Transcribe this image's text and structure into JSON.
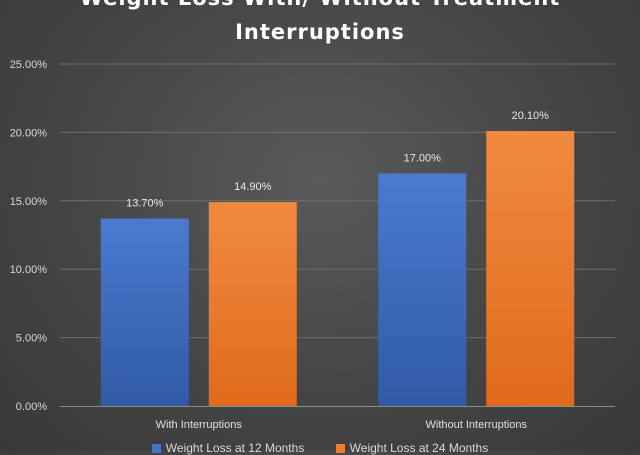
{
  "chart_data": {
    "type": "bar",
    "title": "Weight Loss With/ Without Treatment Interruptions",
    "title_lines": [
      "Weight Loss With/ Without Treatment",
      "Interruptions"
    ],
    "categories": [
      "With Interruptions",
      "Without Interruptions"
    ],
    "series": [
      {
        "name": "Weight Loss at 12 Months",
        "values": [
          13.7,
          17.0
        ],
        "labels": [
          "13.70%",
          "17.00%"
        ],
        "color": "#4472c4"
      },
      {
        "name": "Weight Loss at 24 Months",
        "values": [
          14.9,
          20.1
        ],
        "labels": [
          "14.90%",
          "20.10%"
        ],
        "color": "#ed7d31"
      }
    ],
    "ylim": [
      0,
      25
    ],
    "yticks": [
      0,
      5,
      10,
      15,
      20,
      25
    ],
    "ytick_labels": [
      "0.00%",
      "5.00%",
      "10.00%",
      "15.00%",
      "20.00%",
      "25.00%"
    ],
    "xlabel": "",
    "ylabel": "",
    "grid": true,
    "legend_position": "bottom"
  }
}
